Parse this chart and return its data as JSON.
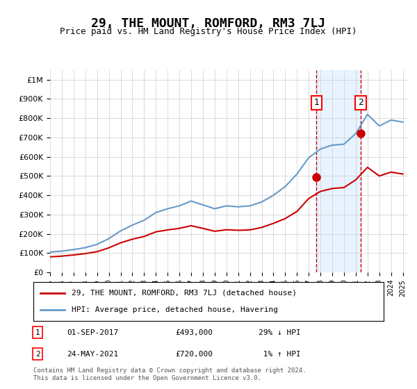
{
  "title": "29, THE MOUNT, ROMFORD, RM3 7LJ",
  "subtitle": "Price paid vs. HM Land Registry's House Price Index (HPI)",
  "hpi_color": "#6699cc",
  "price_color": "#cc0000",
  "marker_color": "#cc0000",
  "vline_color": "#cc0000",
  "shade_color": "#ddeeff",
  "bg_color": "#ffffff",
  "grid_color": "#cccccc",
  "ylim": [
    0,
    1050000
  ],
  "yticks": [
    0,
    100000,
    200000,
    300000,
    400000,
    500000,
    600000,
    700000,
    800000,
    900000,
    1000000
  ],
  "ytick_labels": [
    "£0",
    "£100K",
    "£200K",
    "£300K",
    "£400K",
    "£500K",
    "£600K",
    "£700K",
    "£800K",
    "£900K",
    "£1M"
  ],
  "sale1_date_idx": 22.67,
  "sale1_price": 493000,
  "sale1_label": "1",
  "sale2_date_idx": 26.39,
  "sale2_price": 720000,
  "sale2_label": "2",
  "legend_line1": "29, THE MOUNT, ROMFORD, RM3 7LJ (detached house)",
  "legend_line2": "HPI: Average price, detached house, Havering",
  "table_row1": "1    01-SEP-2017         £493,000        29% ↓ HPI",
  "table_row2": "2    24-MAY-2021         £720,000          1% ↑ HPI",
  "footer": "Contains HM Land Registry data © Crown copyright and database right 2024.\nThis data is licensed under the Open Government Licence v3.0.",
  "hpi_years": [
    1995,
    1996,
    1997,
    1998,
    1999,
    2000,
    2001,
    2002,
    2003,
    2004,
    2005,
    2006,
    2007,
    2008,
    2009,
    2010,
    2011,
    2012,
    2013,
    2014,
    2015,
    2016,
    2017,
    2018,
    2019,
    2020,
    2021,
    2022,
    2023,
    2024,
    2025
  ],
  "hpi_values": [
    105000,
    110000,
    118000,
    128000,
    145000,
    175000,
    215000,
    245000,
    270000,
    310000,
    330000,
    345000,
    370000,
    350000,
    330000,
    345000,
    340000,
    345000,
    365000,
    400000,
    445000,
    510000,
    595000,
    640000,
    660000,
    665000,
    720000,
    820000,
    760000,
    790000,
    780000
  ],
  "price_years": [
    1995,
    1996,
    1997,
    1998,
    1999,
    2000,
    2001,
    2002,
    2003,
    2004,
    2005,
    2006,
    2007,
    2008,
    2009,
    2010,
    2011,
    2012,
    2013,
    2014,
    2015,
    2016,
    2017,
    2018,
    2019,
    2020,
    2021,
    2022,
    2023,
    2024,
    2025
  ],
  "price_values": [
    80000,
    84000,
    90000,
    97000,
    107000,
    127000,
    153000,
    172000,
    186000,
    210000,
    220000,
    228000,
    242000,
    228000,
    213000,
    221000,
    218000,
    220000,
    233000,
    254000,
    279000,
    316000,
    383000,
    420000,
    435000,
    440000,
    480000,
    545000,
    500000,
    520000,
    510000
  ]
}
